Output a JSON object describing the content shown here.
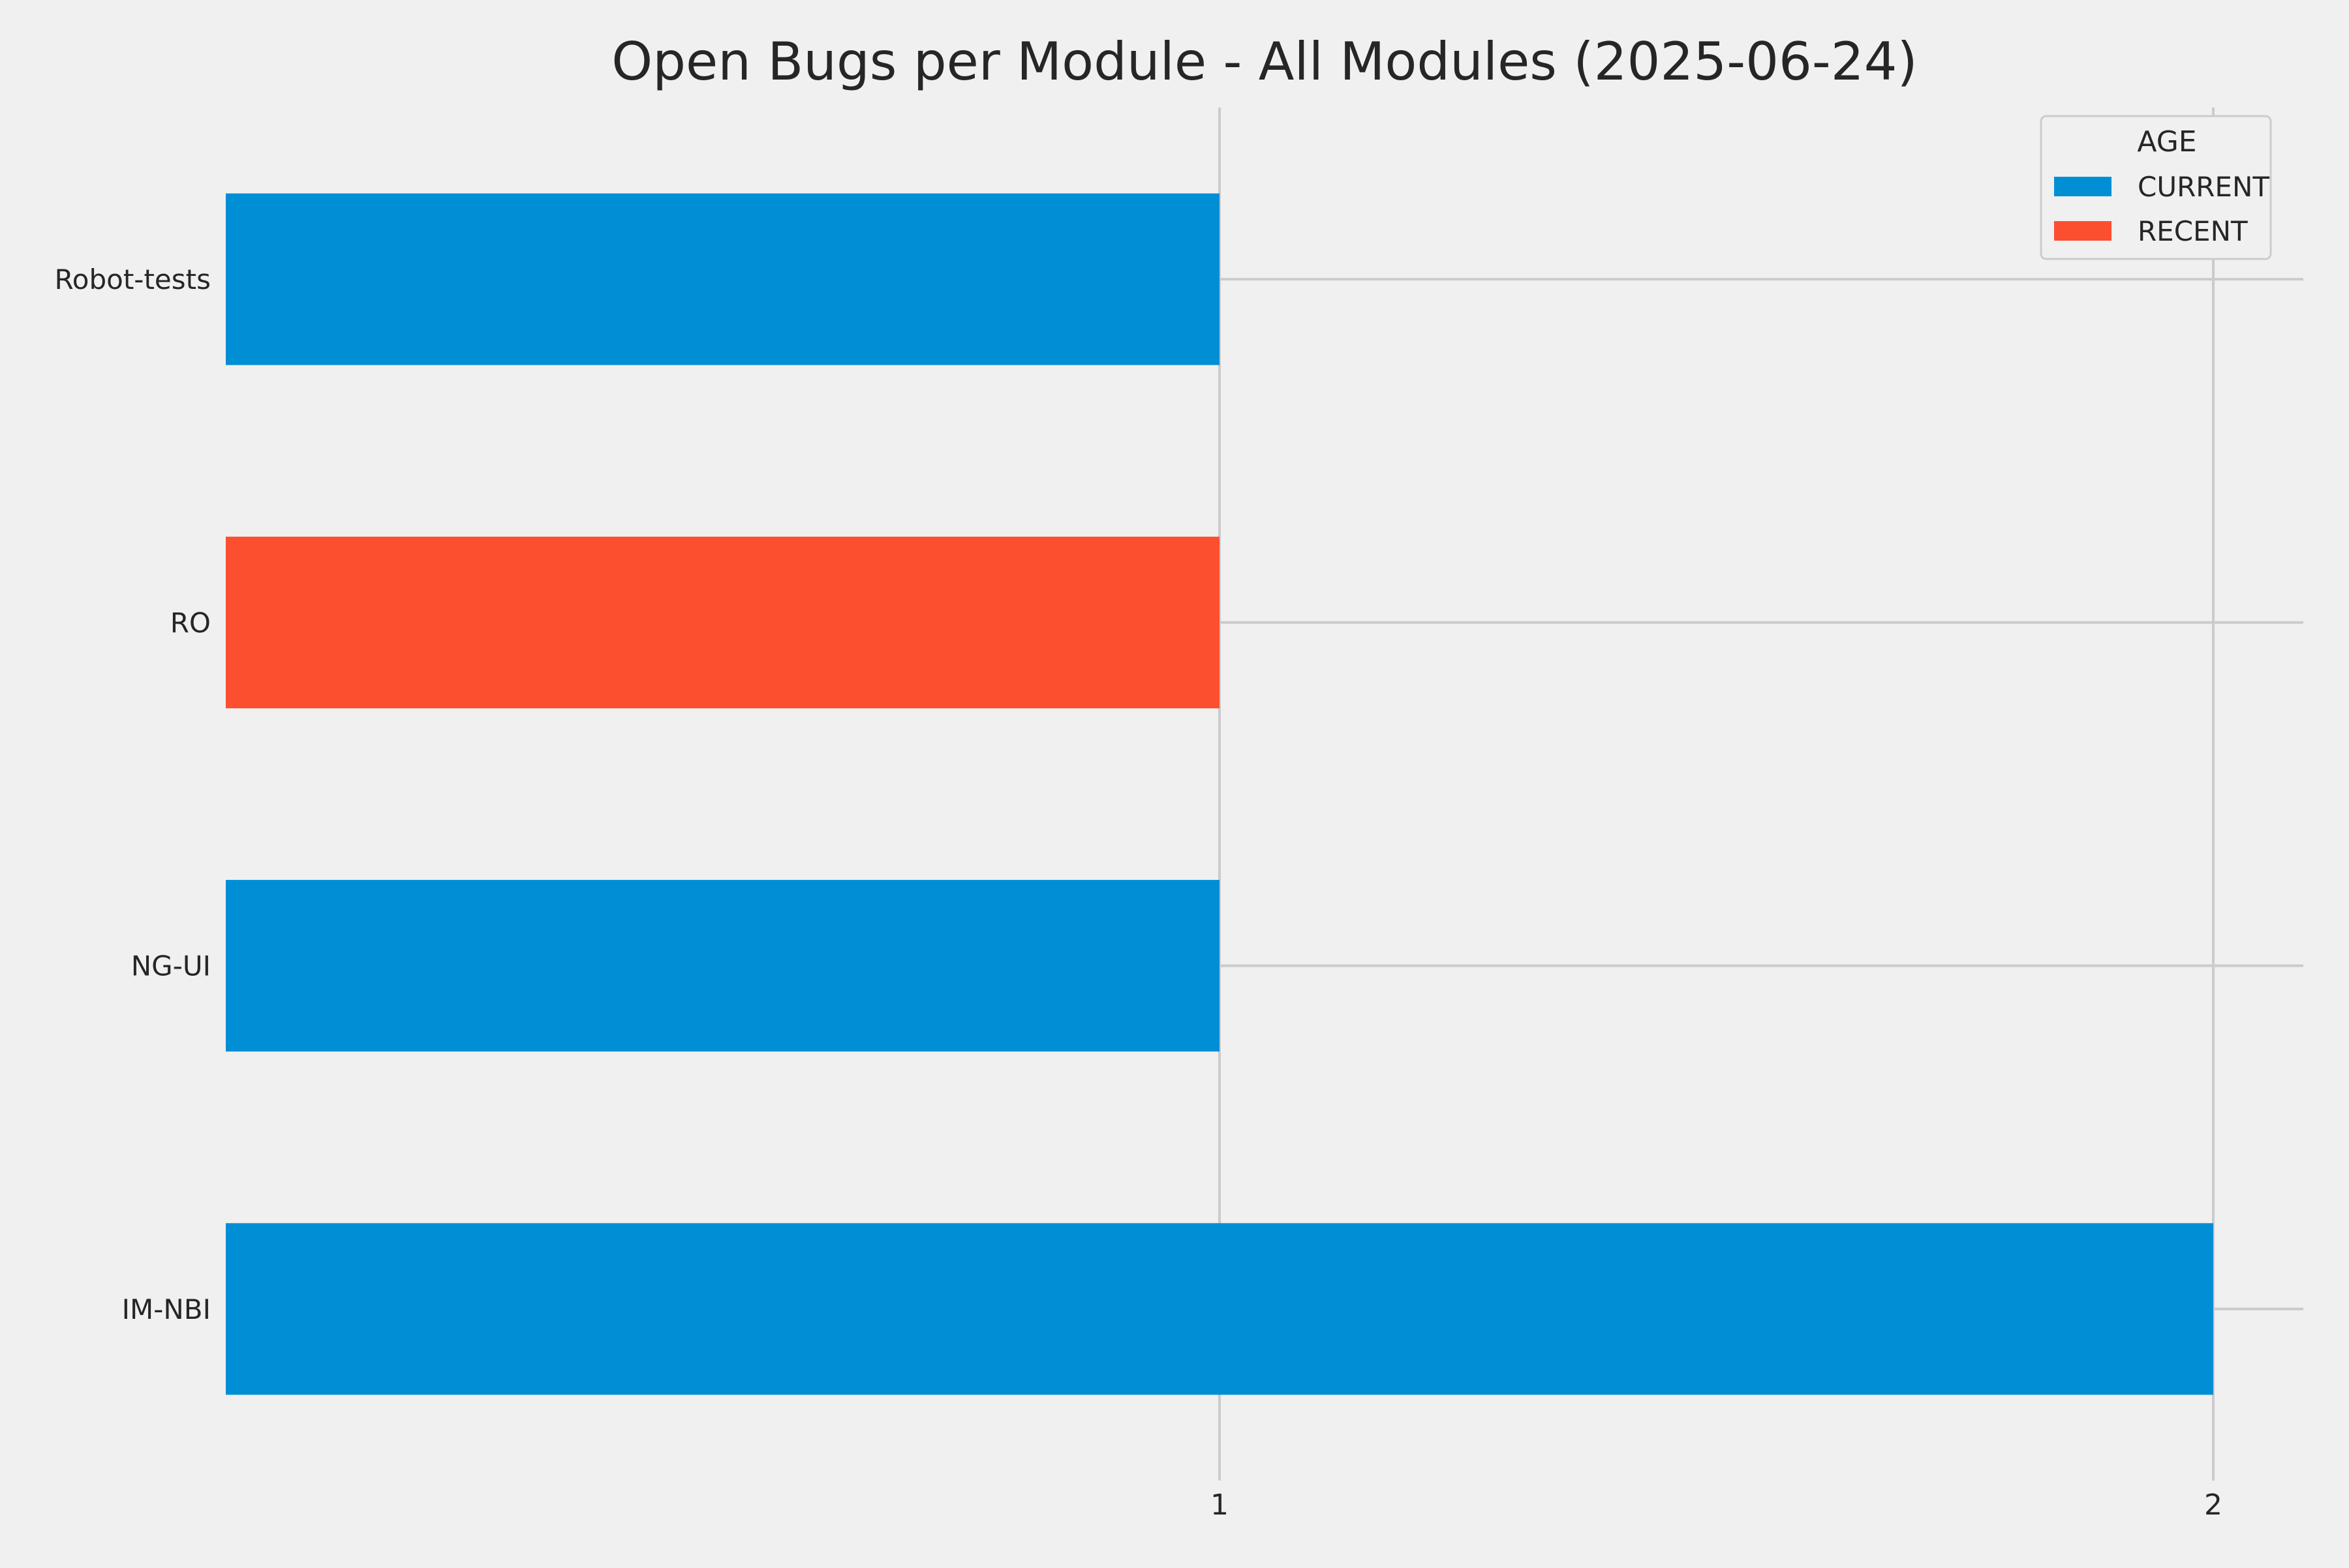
{
  "chart_data": {
    "type": "bar",
    "orientation": "horizontal",
    "title": "Open Bugs per Module - All Modules (2025-06-24)",
    "xlabel": "",
    "ylabel": "",
    "categories": [
      "IM-NBI",
      "NG-UI",
      "RO",
      "Robot-tests"
    ],
    "series": [
      {
        "name": "CURRENT",
        "color": "#008fd5",
        "values": [
          2,
          1,
          0,
          1
        ]
      },
      {
        "name": "RECENT",
        "color": "#fc4f30",
        "values": [
          0,
          0,
          1,
          0
        ]
      }
    ],
    "xlim": [
      0,
      2.1
    ],
    "x_ticks": [
      1,
      2
    ],
    "grid": true,
    "legend": {
      "title": "AGE",
      "position": "top-right"
    },
    "stacked": true
  }
}
